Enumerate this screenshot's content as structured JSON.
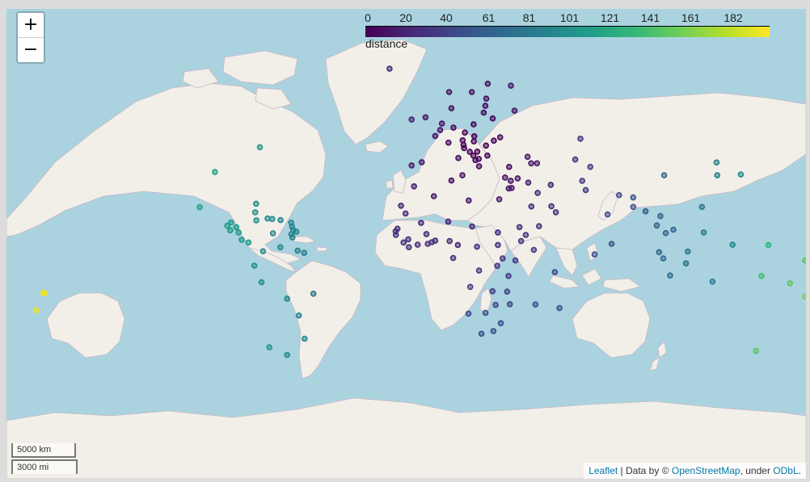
{
  "map": {
    "zoom_in_label": "+",
    "zoom_out_label": "−",
    "legend": {
      "ticks": [
        "0",
        "20",
        "40",
        "61",
        "81",
        "101",
        "121",
        "141",
        "161",
        "182"
      ],
      "caption": "distance",
      "max_value": 200,
      "colors": [
        "#440154",
        "#482777",
        "#3e4a89",
        "#31688e",
        "#26828e",
        "#1f9e89",
        "#35b779",
        "#6ece58",
        "#b5de2b",
        "#fde725"
      ]
    },
    "scale": {
      "km_label": "5000 km",
      "mi_label": "3000 mi"
    },
    "attribution": {
      "leaflet": "Leaflet",
      "sep1": " | Data by © ",
      "osm": "OpenStreetMap",
      "sep2": ", under ",
      "odbl": "ODbL",
      "end": "."
    },
    "colors": {
      "water": "#aad3df",
      "land": "#f2efe9",
      "border": "#c9b8c4"
    }
  },
  "points": [
    {
      "lat": 50.5,
      "lon": 4.5,
      "distance": 8
    },
    {
      "lat": 52.3,
      "lon": 5.3,
      "distance": 9
    },
    {
      "lat": 51.2,
      "lon": 10.4,
      "distance": 4
    },
    {
      "lat": 48.8,
      "lon": 2.3,
      "distance": 10
    },
    {
      "lat": 46.8,
      "lon": 8.2,
      "distance": 6
    },
    {
      "lat": 47.5,
      "lon": 14.5,
      "distance": 3
    },
    {
      "lat": 49.8,
      "lon": 15.5,
      "distance": 2
    },
    {
      "lat": 52.1,
      "lon": 19.4,
      "distance": 2
    },
    {
      "lat": 48.7,
      "lon": 19.7,
      "distance": 1
    },
    {
      "lat": 47.2,
      "lon": 19.5,
      "distance": 1
    },
    {
      "lat": 45.9,
      "lon": 24.9,
      "distance": 0
    },
    {
      "lat": 44.0,
      "lon": 21.0,
      "distance": 1
    },
    {
      "lat": 45.1,
      "lon": 15.2,
      "distance": 2
    },
    {
      "lat": 46.1,
      "lon": 14.9,
      "distance": 2
    },
    {
      "lat": 42.7,
      "lon": 25.5,
      "distance": 2
    },
    {
      "lat": 43.9,
      "lon": 17.7,
      "distance": 2
    },
    {
      "lat": 41.2,
      "lon": 20.2,
      "distance": 3
    },
    {
      "lat": 41.6,
      "lon": 21.7,
      "distance": 3
    },
    {
      "lat": 42.7,
      "lon": 19.3,
      "distance": 3
    },
    {
      "lat": 39.1,
      "lon": 21.8,
      "distance": 5
    },
    {
      "lat": 41.9,
      "lon": 12.6,
      "distance": 6
    },
    {
      "lat": 40.5,
      "lon": -3.7,
      "distance": 13
    },
    {
      "lat": 39.4,
      "lon": -8.2,
      "distance": 16
    },
    {
      "lat": 53.4,
      "lon": -8.2,
      "distance": 17
    },
    {
      "lat": 54.0,
      "lon": -2.0,
      "distance": 12
    },
    {
      "lat": 56.3,
      "lon": 9.5,
      "distance": 8
    },
    {
      "lat": 60.1,
      "lon": 8.5,
      "distance": 10
    },
    {
      "lat": 60.1,
      "lon": 18.6,
      "distance": 9
    },
    {
      "lat": 61.9,
      "lon": 25.7,
      "distance": 9
    },
    {
      "lat": 58.6,
      "lon": 25.0,
      "distance": 6
    },
    {
      "lat": 56.9,
      "lon": 24.6,
      "distance": 5
    },
    {
      "lat": 55.2,
      "lon": 23.9,
      "distance": 4
    },
    {
      "lat": 53.7,
      "lon": 27.9,
      "distance": 3
    },
    {
      "lat": 48.4,
      "lon": 31.2,
      "distance": 3
    },
    {
      "lat": 47.4,
      "lon": 28.4,
      "distance": 1
    },
    {
      "lat": 61.5,
      "lon": 36.0,
      "distance": 12
    },
    {
      "lat": 55.7,
      "lon": 37.6,
      "distance": 8
    },
    {
      "lat": 64.9,
      "lon": -18.0,
      "distance": 26
    },
    {
      "lat": 35.9,
      "lon": 14.4,
      "distance": 8
    },
    {
      "lat": 38.9,
      "lon": 35.2,
      "distance": 6
    },
    {
      "lat": 35.1,
      "lon": 33.4,
      "distance": 9
    },
    {
      "lat": 33.9,
      "lon": 35.9,
      "distance": 11
    },
    {
      "lat": 31.0,
      "lon": 35.0,
      "distance": 13
    },
    {
      "lat": 31.2,
      "lon": 36.3,
      "distance": 13
    },
    {
      "lat": 34.8,
      "lon": 39.0,
      "distance": 13
    },
    {
      "lat": 42.3,
      "lon": 43.4,
      "distance": 13
    },
    {
      "lat": 40.1,
      "lon": 45.0,
      "distance": 14
    },
    {
      "lat": 40.1,
      "lon": 47.6,
      "distance": 15
    },
    {
      "lat": 33.2,
      "lon": 43.7,
      "distance": 17
    },
    {
      "lat": 32.4,
      "lon": 53.7,
      "distance": 21
    },
    {
      "lat": 48.0,
      "lon": 66.9,
      "distance": 32
    },
    {
      "lat": 41.4,
      "lon": 64.6,
      "distance": 30
    },
    {
      "lat": 38.9,
      "lon": 71.3,
      "distance": 33
    },
    {
      "lat": 33.9,
      "lon": 67.7,
      "distance": 35
    },
    {
      "lat": 30.4,
      "lon": 69.3,
      "distance": 37
    },
    {
      "lat": 23.9,
      "lon": 45.1,
      "distance": 25
    },
    {
      "lat": 24.0,
      "lon": 54.0,
      "distance": 28
    },
    {
      "lat": 21.5,
      "lon": 56.0,
      "distance": 29
    },
    {
      "lat": 15.6,
      "lon": 48.5,
      "distance": 28
    },
    {
      "lat": 29.3,
      "lon": 47.9,
      "distance": 22
    },
    {
      "lat": 26.8,
      "lon": 30.8,
      "distance": 14
    },
    {
      "lat": 26.3,
      "lon": 17.2,
      "distance": 12
    },
    {
      "lat": 34.0,
      "lon": 9.5,
      "distance": 9
    },
    {
      "lat": 28.0,
      "lon": 1.7,
      "distance": 13
    },
    {
      "lat": 31.8,
      "lon": -7.1,
      "distance": 17
    },
    {
      "lat": 24.2,
      "lon": -12.9,
      "distance": 20
    },
    {
      "lat": 17.6,
      "lon": 8.1,
      "distance": 18
    },
    {
      "lat": 17.0,
      "lon": -4.0,
      "distance": 20
    },
    {
      "lat": 21.0,
      "lon": -10.9,
      "distance": 23
    },
    {
      "lat": 14.5,
      "lon": -14.5,
      "distance": 25
    },
    {
      "lat": 13.4,
      "lon": -15.3,
      "distance": 26
    },
    {
      "lat": 11.8,
      "lon": -15.2,
      "distance": 27
    },
    {
      "lat": 9.9,
      "lon": -9.7,
      "distance": 26
    },
    {
      "lat": 8.5,
      "lon": -11.8,
      "distance": 27
    },
    {
      "lat": 6.4,
      "lon": -9.4,
      "distance": 28
    },
    {
      "lat": 7.5,
      "lon": -5.5,
      "distance": 27
    },
    {
      "lat": 7.9,
      "lon": -1.0,
      "distance": 26
    },
    {
      "lat": 8.6,
      "lon": 0.8,
      "distance": 26
    },
    {
      "lat": 9.3,
      "lon": 2.3,
      "distance": 25
    },
    {
      "lat": 12.2,
      "lon": -1.6,
      "distance": 24
    },
    {
      "lat": 9.1,
      "lon": 8.7,
      "distance": 24
    },
    {
      "lat": 15.5,
      "lon": 18.7,
      "distance": 20
    },
    {
      "lat": 12.9,
      "lon": 30.2,
      "distance": 22
    },
    {
      "lat": 15.2,
      "lon": 39.8,
      "distance": 24
    },
    {
      "lat": 11.8,
      "lon": 42.6,
      "distance": 27
    },
    {
      "lat": 9.1,
      "lon": 40.5,
      "distance": 29
    },
    {
      "lat": 5.2,
      "lon": 46.2,
      "distance": 33
    },
    {
      "lat": 7.4,
      "lon": 30.2,
      "distance": 27
    },
    {
      "lat": 6.6,
      "lon": 20.9,
      "distance": 26
    },
    {
      "lat": 7.4,
      "lon": 12.4,
      "distance": 25
    },
    {
      "lat": 1.6,
      "lon": 10.3,
      "distance": 29
    },
    {
      "lat": 1.4,
      "lon": 32.3,
      "distance": 30
    },
    {
      "lat": 0.5,
      "lon": 38.0,
      "distance": 32
    },
    {
      "lat": -1.9,
      "lon": 29.9,
      "distance": 31
    },
    {
      "lat": -4.0,
      "lon": 21.8,
      "distance": 32
    },
    {
      "lat": -6.4,
      "lon": 34.9,
      "distance": 35
    },
    {
      "lat": -11.2,
      "lon": 17.9,
      "distance": 37
    },
    {
      "lat": -13.3,
      "lon": 34.3,
      "distance": 38
    },
    {
      "lat": -13.1,
      "lon": 27.8,
      "distance": 38
    },
    {
      "lat": -18.7,
      "lon": 35.5,
      "distance": 42
    },
    {
      "lat": -19.0,
      "lon": 29.2,
      "distance": 42
    },
    {
      "lat": -22.3,
      "lon": 24.7,
      "distance": 44
    },
    {
      "lat": -22.6,
      "lon": 17.1,
      "distance": 45
    },
    {
      "lat": -26.5,
      "lon": 31.5,
      "distance": 47
    },
    {
      "lat": -29.6,
      "lon": 28.2,
      "distance": 48
    },
    {
      "lat": -30.6,
      "lon": 22.9,
      "distance": 48
    },
    {
      "lat": -18.8,
      "lon": 46.9,
      "distance": 47
    },
    {
      "lat": -20.3,
      "lon": 57.6,
      "distance": 52
    },
    {
      "lat": -4.7,
      "lon": 55.5,
      "distance": 44
    },
    {
      "lat": 20.6,
      "lon": 79.0,
      "distance": 45
    },
    {
      "lat": 7.9,
      "lon": 80.8,
      "distance": 51
    },
    {
      "lat": 3.2,
      "lon": 73.2,
      "distance": 49
    },
    {
      "lat": 28.4,
      "lon": 84.1,
      "distance": 47
    },
    {
      "lat": 27.5,
      "lon": 90.4,
      "distance": 51
    },
    {
      "lat": 23.7,
      "lon": 90.4,
      "distance": 52
    },
    {
      "lat": 21.9,
      "lon": 95.9,
      "distance": 57
    },
    {
      "lat": 15.9,
      "lon": 100.9,
      "distance": 61
    },
    {
      "lat": 19.9,
      "lon": 102.5,
      "distance": 62
    },
    {
      "lat": 12.6,
      "lon": 104.9,
      "distance": 64
    },
    {
      "lat": 14.1,
      "lon": 108.3,
      "distance": 66
    },
    {
      "lat": 4.2,
      "lon": 101.9,
      "distance": 65
    },
    {
      "lat": 1.4,
      "lon": 103.8,
      "distance": 67
    },
    {
      "lat": 4.5,
      "lon": 114.7,
      "distance": 75
    },
    {
      "lat": -0.8,
      "lon": 113.9,
      "distance": 75
    },
    {
      "lat": -6.2,
      "lon": 106.8,
      "distance": 73
    },
    {
      "lat": 12.9,
      "lon": 121.8,
      "distance": 83
    },
    {
      "lat": 23.7,
      "lon": 121.0,
      "distance": 82
    },
    {
      "lat": 35.9,
      "lon": 104.2,
      "distance": 68
    },
    {
      "lat": 40.4,
      "lon": 127.5,
      "distance": 87
    },
    {
      "lat": 35.9,
      "lon": 127.8,
      "distance": 87
    },
    {
      "lat": 36.2,
      "lon": 138.3,
      "distance": 95
    },
    {
      "lat": -8.9,
      "lon": 125.7,
      "distance": 85
    },
    {
      "lat": 7.5,
      "lon": 134.6,
      "distance": 92
    },
    {
      "lat": 7.4,
      "lon": 150.6,
      "distance": 130
    },
    {
      "lat": 7.1,
      "lon": 171.2,
      "distance": 140
    },
    {
      "lat": 1.9,
      "lon": 173.0,
      "distance": 145
    },
    {
      "lat": 0.5,
      "lon": 166.9,
      "distance": 147
    },
    {
      "lat": -6.4,
      "lon": 147.5,
      "distance": 138
    },
    {
      "lat": -9.6,
      "lon": 160.2,
      "distance": 150
    },
    {
      "lat": -15.4,
      "lon": 166.9,
      "distance": 158
    },
    {
      "lat": -8.5,
      "lon": 179.2,
      "distance": 160
    },
    {
      "lat": -17.7,
      "lon": 178.1,
      "distance": 163
    },
    {
      "lat": -37.0,
      "lon": 145.0,
      "distance": 148
    },
    {
      "lat": -41.0,
      "lon": 174.0,
      "distance": 168
    },
    {
      "lat": -13.8,
      "lon": -172.1,
      "distance": 193
    },
    {
      "lat": -21.2,
      "lon": -175.2,
      "distance": 195
    },
    {
      "lat": 45.4,
      "lon": -75.7,
      "distance": 107
    },
    {
      "lat": 37.1,
      "lon": -95.7,
      "distance": 112
    },
    {
      "lat": 23.6,
      "lon": -102.5,
      "distance": 115
    },
    {
      "lat": 17.2,
      "lon": -88.5,
      "distance": 108
    },
    {
      "lat": 15.8,
      "lon": -90.2,
      "distance": 110
    },
    {
      "lat": 13.8,
      "lon": -88.9,
      "distance": 108
    },
    {
      "lat": 15.2,
      "lon": -86.2,
      "distance": 107
    },
    {
      "lat": 12.9,
      "lon": -85.2,
      "distance": 106
    },
    {
      "lat": 9.7,
      "lon": -83.8,
      "distance": 106
    },
    {
      "lat": 8.5,
      "lon": -80.8,
      "distance": 104
    },
    {
      "lat": 21.5,
      "lon": -77.8,
      "distance": 100
    },
    {
      "lat": 25.0,
      "lon": -77.4,
      "distance": 99
    },
    {
      "lat": 18.1,
      "lon": -77.3,
      "distance": 100
    },
    {
      "lat": 18.9,
      "lon": -72.3,
      "distance": 96
    },
    {
      "lat": 18.7,
      "lon": -70.2,
      "distance": 95
    },
    {
      "lat": 18.2,
      "lon": -66.5,
      "distance": 93
    },
    {
      "lat": 17.1,
      "lon": -61.8,
      "distance": 91
    },
    {
      "lat": 15.4,
      "lon": -61.4,
      "distance": 90
    },
    {
      "lat": 13.9,
      "lon": -60.9,
      "distance": 90
    },
    {
      "lat": 13.2,
      "lon": -59.5,
      "distance": 89
    },
    {
      "lat": 12.1,
      "lon": -61.7,
      "distance": 90
    },
    {
      "lat": 10.7,
      "lon": -61.2,
      "distance": 89
    },
    {
      "lat": 12.5,
      "lon": -69.9,
      "distance": 94
    },
    {
      "lat": 6.4,
      "lon": -66.6,
      "distance": 92
    },
    {
      "lat": 4.6,
      "lon": -74.3,
      "distance": 97
    },
    {
      "lat": 4.9,
      "lon": -58.9,
      "distance": 87
    },
    {
      "lat": 3.9,
      "lon": -56.0,
      "distance": 85
    },
    {
      "lat": -1.8,
      "lon": -78.2,
      "distance": 100
    },
    {
      "lat": -9.2,
      "lon": -75.0,
      "distance": 99
    },
    {
      "lat": -14.2,
      "lon": -51.9,
      "distance": 82
    },
    {
      "lat": -16.3,
      "lon": -63.6,
      "distance": 90
    },
    {
      "lat": -23.4,
      "lon": -58.4,
      "distance": 88
    },
    {
      "lat": -35.7,
      "lon": -71.5,
      "distance": 102
    },
    {
      "lat": -38.4,
      "lon": -63.6,
      "distance": 98
    },
    {
      "lat": -32.5,
      "lon": -55.8,
      "distance": 94
    },
    {
      "lat": -17.8,
      "lon": 178.0,
      "distance": 184
    },
    {
      "lat": -14.0,
      "lon": -171.5,
      "distance": 196
    }
  ]
}
